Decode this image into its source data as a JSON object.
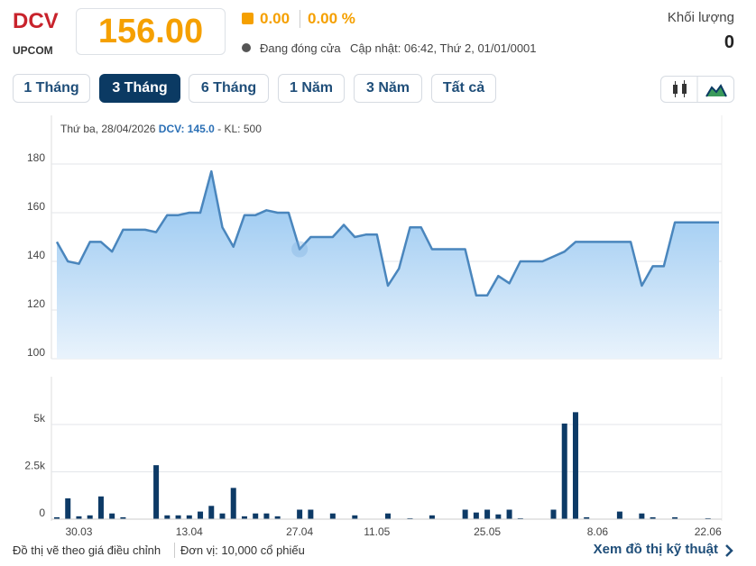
{
  "header": {
    "symbol": "DCV",
    "exchange": "UPCOM",
    "price": "156.00",
    "change": "0.00",
    "change_pct": "0.00 %",
    "status": "Đang đóng cửa",
    "updated": "Cập nhật: 06:42, Thứ 2, 01/01/0001",
    "volume_label": "Khối lượng",
    "volume": "0"
  },
  "periods": [
    "1 Tháng",
    "3 Tháng",
    "6 Tháng",
    "1 Năm",
    "3 Năm",
    "Tất cả"
  ],
  "tooltip": {
    "date": "Thứ ba, 28/04/2026",
    "price": "DCV: 145.0",
    "volume": " - KL: 500"
  },
  "footer": {
    "note": "Đồ thị vẽ theo giá điều chỉnh",
    "unit": "Đơn vị: 10,000 cổ phiếu",
    "link": "Xem đồ thị kỹ thuật"
  },
  "chart_data": [
    {
      "type": "line",
      "color": "#4a86bd",
      "ylim": [
        100,
        200
      ],
      "yticks": [
        100,
        120,
        140,
        160,
        180
      ],
      "grid": true,
      "values": [
        148,
        140,
        139,
        148,
        148,
        144,
        153,
        153,
        153,
        152,
        159,
        159,
        160,
        160,
        177,
        154,
        146,
        159,
        159,
        161,
        160,
        160,
        145,
        150,
        150,
        150,
        155,
        150,
        151,
        151,
        130,
        137,
        154,
        154,
        145,
        145,
        145,
        145,
        126,
        126,
        134,
        131,
        140,
        140,
        140,
        142,
        144,
        148,
        148,
        148,
        148,
        148,
        148,
        130,
        138,
        138,
        156,
        156,
        156,
        156,
        156
      ]
    },
    {
      "type": "bar",
      "color": "#0d3a66",
      "ylim": [
        0,
        7500
      ],
      "yticks": [
        0,
        {
          "value": 2500,
          "label": "2.5k"
        },
        {
          "value": 5000,
          "label": "5k"
        }
      ],
      "grid": true,
      "categories": [
        null,
        null,
        "30.03",
        null,
        null,
        null,
        null,
        null,
        null,
        null,
        null,
        null,
        "13.04",
        null,
        null,
        null,
        null,
        null,
        null,
        null,
        null,
        null,
        "27.04",
        null,
        null,
        null,
        null,
        null,
        null,
        "11.05",
        null,
        null,
        null,
        null,
        null,
        null,
        null,
        null,
        null,
        "25.05",
        null,
        null,
        null,
        null,
        null,
        null,
        null,
        null,
        null,
        "8.06",
        null,
        null,
        null,
        null,
        null,
        null,
        null,
        null,
        null,
        "22.06",
        null
      ],
      "values": [
        100,
        1100,
        150,
        200,
        1200,
        300,
        100,
        0,
        0,
        2850,
        200,
        200,
        200,
        400,
        700,
        300,
        1650,
        150,
        300,
        300,
        150,
        0,
        500,
        500,
        0,
        300,
        0,
        200,
        0,
        0,
        300,
        0,
        50,
        0,
        200,
        0,
        0,
        500,
        350,
        500,
        250,
        500,
        50,
        0,
        0,
        500,
        5050,
        5650,
        100,
        0,
        0,
        400,
        0,
        300,
        100,
        0,
        100,
        0,
        0,
        50,
        0
      ]
    }
  ]
}
